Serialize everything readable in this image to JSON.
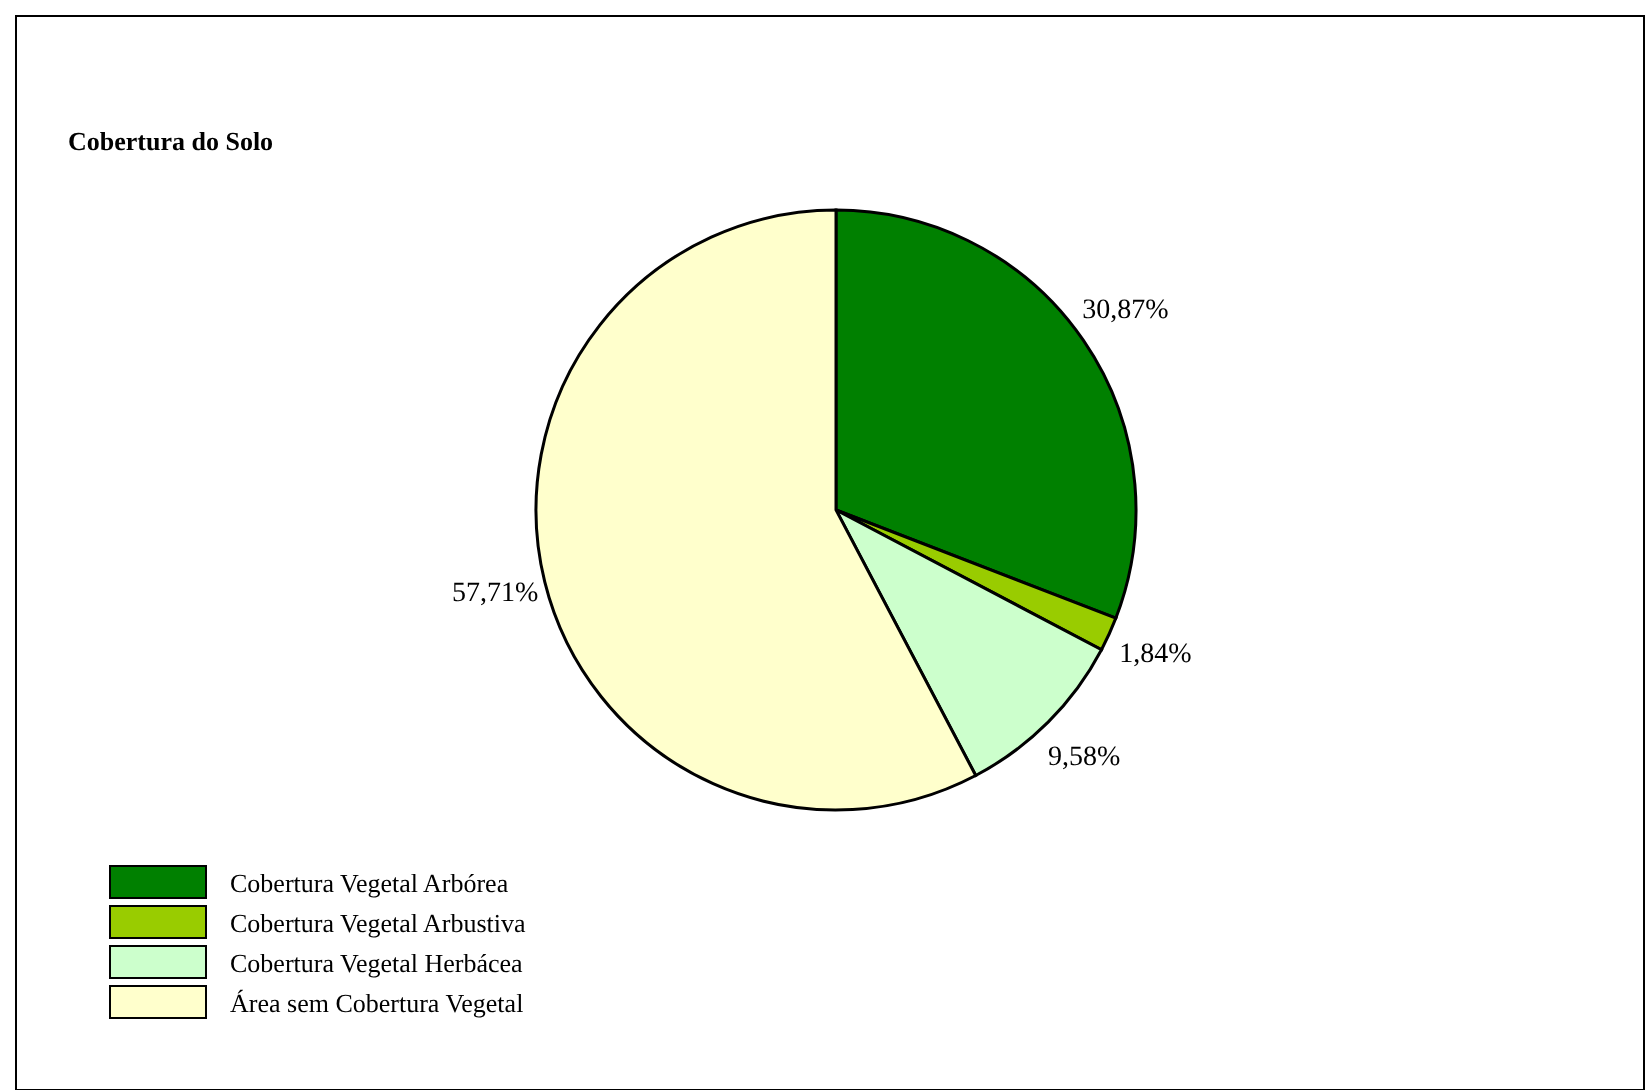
{
  "chart_data": {
    "type": "pie",
    "title": "Cobertura do Solo",
    "categories": [
      "Cobertura Vegetal Arbórea",
      "Cobertura Vegetal Arbustiva",
      "Cobertura Vegetal Herbácea",
      "Área sem Cobertura Vegetal"
    ],
    "values": [
      30.87,
      1.84,
      9.58,
      57.71
    ],
    "colors": [
      "#008000",
      "#99cc00",
      "#ccffcc",
      "#ffffcc"
    ],
    "value_labels": [
      "30,87%",
      "1,84%",
      "9,58%",
      "57,71%"
    ],
    "legend": "bottom left"
  }
}
